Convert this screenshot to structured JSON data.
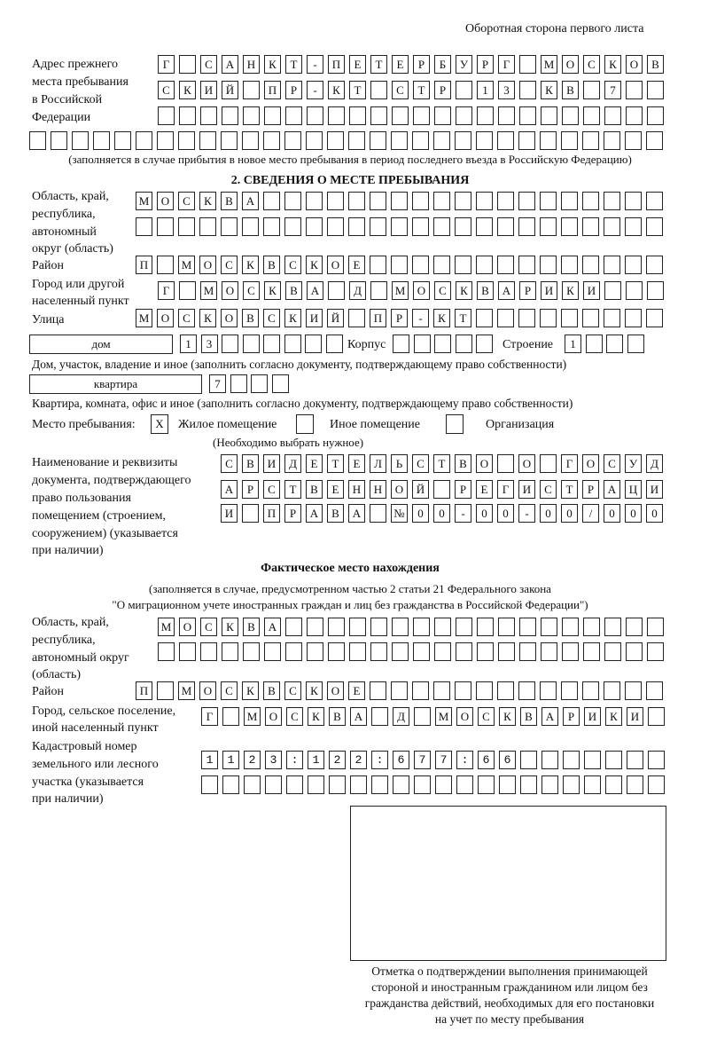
{
  "header": {
    "page_side": "Оборотная сторона первого листа"
  },
  "previous_address": {
    "label": [
      "Адрес прежнего",
      "места пребывания",
      "в Российской",
      "Федерации"
    ],
    "rows": [
      "Г САНКТ-ПЕТЕРБУРГ МОСКОВ",
      "СКИЙ ПР-КТ СТР 13 КВ 7",
      "",
      ""
    ],
    "note": "(заполняется в случае прибытия в новое место пребывания в период последнего въезда в Российскую Федерацию)"
  },
  "section2": {
    "title": "2. СВЕДЕНИЯ О МЕСТЕ ПРЕБЫВАНИЯ",
    "region_label": [
      "Область, край,",
      "республика,",
      "автономный",
      "округ (область)"
    ],
    "region_rows": [
      "МОСКВА",
      ""
    ],
    "district_label": "Район",
    "district": "П МОСКВСКОЕ",
    "city_label": [
      "Город или другой",
      "населенный пункт"
    ],
    "city": "Г МОСКВА Д МОСКВАРИКИ",
    "street_label": "Улица",
    "street": "МОСКОВСКИЙ ПР-КТ",
    "house_type": "дом",
    "house": "13",
    "korpus_label": "Корпус",
    "korpus": "",
    "building_label": "Строение",
    "building": "1",
    "house_note": "Дом, участок, владение и иное (заполнить согласно документу, подтверждающему право собственности)",
    "apt_type": "квартира",
    "apt": "7",
    "apt_note": "Квартира, комната, офис и иное (заполнить согласно документу, подтверждающему право собственности)",
    "stay_place_label": "Место пребывания:",
    "options": [
      {
        "label": "Жилое помещение",
        "mark": "Х"
      },
      {
        "label": "Иное помещение",
        "mark": ""
      },
      {
        "label": "Организация",
        "mark": ""
      }
    ],
    "choose_note": "(Необходимо выбрать нужное)",
    "doc_label": [
      "Наименование и реквизиты",
      "документа, подтверждающего",
      "право пользования",
      "помещением (строением,",
      "сооружением) (указывается",
      "при наличии)"
    ],
    "doc_rows": [
      "СВИДЕТЕЛЬСТВО О ГОСУД",
      "АРСТВЕННОЙ РЕГИСТРАЦИ",
      "И ПРАВА №00-00-00/000"
    ]
  },
  "actual": {
    "title": "Фактическое место нахождения",
    "note": [
      "(заполняется в случае, предусмотренном частью 2 статьи 21 Федерального закона",
      "\"О миграционном учете иностранных граждан и лиц без гражданства в Российской Федерации\")"
    ],
    "region_label": [
      "Область, край,",
      "республика,",
      "автономный округ",
      "(область)"
    ],
    "region_rows": [
      "МОСКВА",
      ""
    ],
    "district_label": "Район",
    "district": "П МОСКВСКОЕ",
    "city_label": [
      "Город, сельское поселение,",
      "иной населенный пункт"
    ],
    "city": "Г МОСКВА Д МОСКВАРИКИ",
    "cadastre_label": [
      "Кадастровый номер",
      "земельного или лесного",
      "участка (указывается",
      "при наличии)"
    ],
    "cadastre_rows": [
      "1123:122:677:66",
      ""
    ]
  },
  "confirmation_note": [
    "Отметка о подтверждении выполнения принимающей",
    "стороной и иностранным гражданином или лицом без",
    "гражданства действий, необходимых для его постановки",
    "на учет по месту пребывания"
  ]
}
